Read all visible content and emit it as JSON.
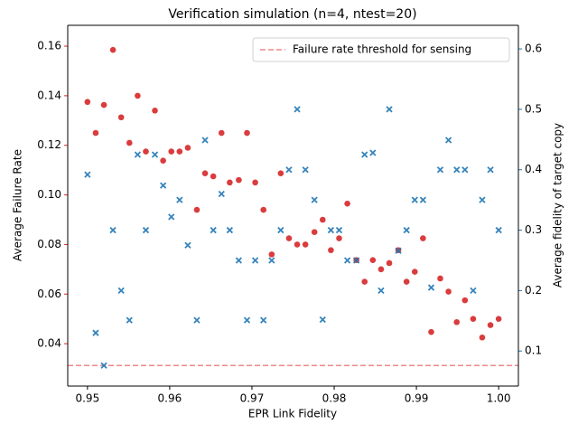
{
  "chart_data": {
    "type": "scatter",
    "title": "Verification simulation (n=4, ntest=20)",
    "x_label": "EPR Link Fidelity",
    "y_label": "Average Failure Rate",
    "y2_label": "Average fidelity of target copy",
    "x": [
      0.95,
      0.951,
      0.952,
      0.9531,
      0.9541,
      0.9551,
      0.9561,
      0.9571,
      0.9582,
      0.9592,
      0.9602,
      0.9612,
      0.9622,
      0.9633,
      0.9643,
      0.9653,
      0.9663,
      0.9673,
      0.9684,
      0.9694,
      0.9704,
      0.9714,
      0.9724,
      0.9735,
      0.9745,
      0.9755,
      0.9765,
      0.9776,
      0.9786,
      0.9796,
      0.9806,
      0.9816,
      0.9827,
      0.9837,
      0.9847,
      0.9857,
      0.9867,
      0.9878,
      0.9888,
      0.9898,
      0.9908,
      0.9918,
      0.9929,
      0.9939,
      0.9949,
      0.9959,
      0.9969,
      0.998,
      0.999,
      1.0
    ],
    "series": [
      {
        "color": "#d62728",
        "marker": "circle",
        "axis": "y",
        "values": [
          0.1375,
          0.125,
          0.1363,
          0.1585,
          0.1313,
          0.121,
          0.14,
          0.1175,
          0.134,
          0.1138,
          0.1175,
          0.1175,
          0.119,
          0.094,
          0.1087,
          0.1075,
          0.125,
          0.105,
          0.106,
          0.125,
          0.105,
          0.094,
          0.076,
          0.1087,
          0.0825,
          0.08,
          0.08,
          0.085,
          0.09,
          0.0777,
          0.0825,
          0.0965,
          0.0737,
          0.065,
          0.0737,
          0.07,
          0.0725,
          0.0777,
          0.065,
          0.069,
          0.0825,
          0.0447,
          0.0663,
          0.061,
          0.0487,
          0.0575,
          0.05,
          0.0425,
          0.0475,
          0.05
        ]
      },
      {
        "color": "#1f77b4",
        "marker": "x",
        "axis": "y2",
        "values": [
          0.392,
          0.13,
          0.076,
          0.3,
          0.2,
          0.151,
          0.425,
          0.3,
          0.425,
          0.374,
          0.322,
          0.35,
          0.275,
          0.151,
          0.449,
          0.3,
          0.36,
          0.3,
          0.25,
          0.151,
          0.25,
          0.151,
          0.25,
          0.3,
          0.4,
          0.5,
          0.4,
          0.35,
          0.152,
          0.3,
          0.3,
          0.25,
          0.25,
          0.425,
          0.428,
          0.2,
          0.5,
          0.266,
          0.3,
          0.35,
          0.35,
          0.205,
          0.4,
          0.449,
          0.4,
          0.4,
          0.2,
          0.35,
          0.4,
          0.3
        ]
      }
    ],
    "hlines": [
      {
        "value": 0.0312,
        "label": "Failure rate threshold for sensing",
        "color": "#f0888a",
        "style": "dashed"
      }
    ],
    "xlim": [
      0.9476,
      1.0024
    ],
    "xticks": [
      0.95,
      0.96,
      0.97,
      0.98,
      0.99,
      {
        "value": 1,
        "label": "1.00"
      }
    ],
    "ylim": [
      0.0229,
      0.1684
    ],
    "yticks": [
      0.04,
      0.06,
      0.08,
      {
        "value": 0.1,
        "label": "0.10"
      },
      0.12,
      0.14,
      0.16
    ],
    "y2lim": [
      0.042,
      0.639
    ],
    "y2ticks": [
      0.1,
      0.2,
      0.3,
      0.4,
      0.5,
      0.6
    ],
    "y_color": "#d62728",
    "y2_color": "#1f77b4",
    "legend": "upper right",
    "grid": false
  }
}
